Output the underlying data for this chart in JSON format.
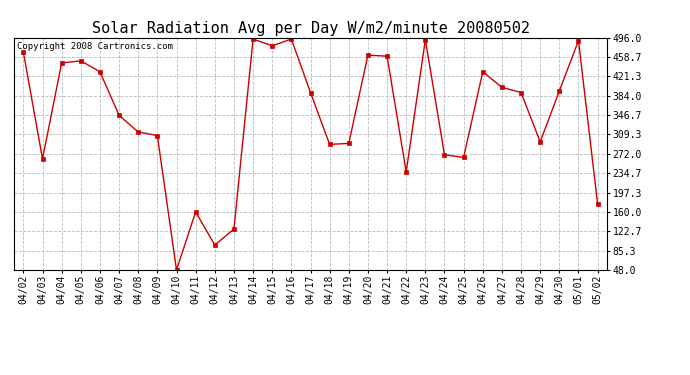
{
  "title": "Solar Radiation Avg per Day W/m2/minute 20080502",
  "copyright": "Copyright 2008 Cartronics.com",
  "x_labels": [
    "04/02",
    "04/03",
    "04/04",
    "04/05",
    "04/06",
    "04/07",
    "04/08",
    "04/09",
    "04/10",
    "04/11",
    "04/12",
    "04/13",
    "04/14",
    "04/15",
    "04/16",
    "04/17",
    "04/18",
    "04/19",
    "04/20",
    "04/21",
    "04/22",
    "04/23",
    "04/24",
    "04/25",
    "04/26",
    "04/27",
    "04/28",
    "04/29",
    "04/30",
    "05/01",
    "05/02"
  ],
  "y_values": [
    468,
    262,
    447,
    451,
    430,
    346,
    314,
    307,
    48,
    160,
    96,
    127,
    493,
    480,
    493,
    390,
    290,
    292,
    462,
    460,
    237,
    492,
    270,
    265,
    430,
    400,
    390,
    295,
    393,
    490,
    175
  ],
  "y_ticks": [
    48.0,
    85.3,
    122.7,
    160.0,
    197.3,
    234.7,
    272.0,
    309.3,
    346.7,
    384.0,
    421.3,
    458.7,
    496.0
  ],
  "line_color": "#cc0000",
  "marker": "s",
  "marker_size": 2.5,
  "background_color": "#ffffff",
  "grid_color": "#bbbbbb",
  "title_fontsize": 11,
  "tick_fontsize": 7,
  "copyright_fontsize": 6.5,
  "ylim_min": 48.0,
  "ylim_max": 496.0
}
